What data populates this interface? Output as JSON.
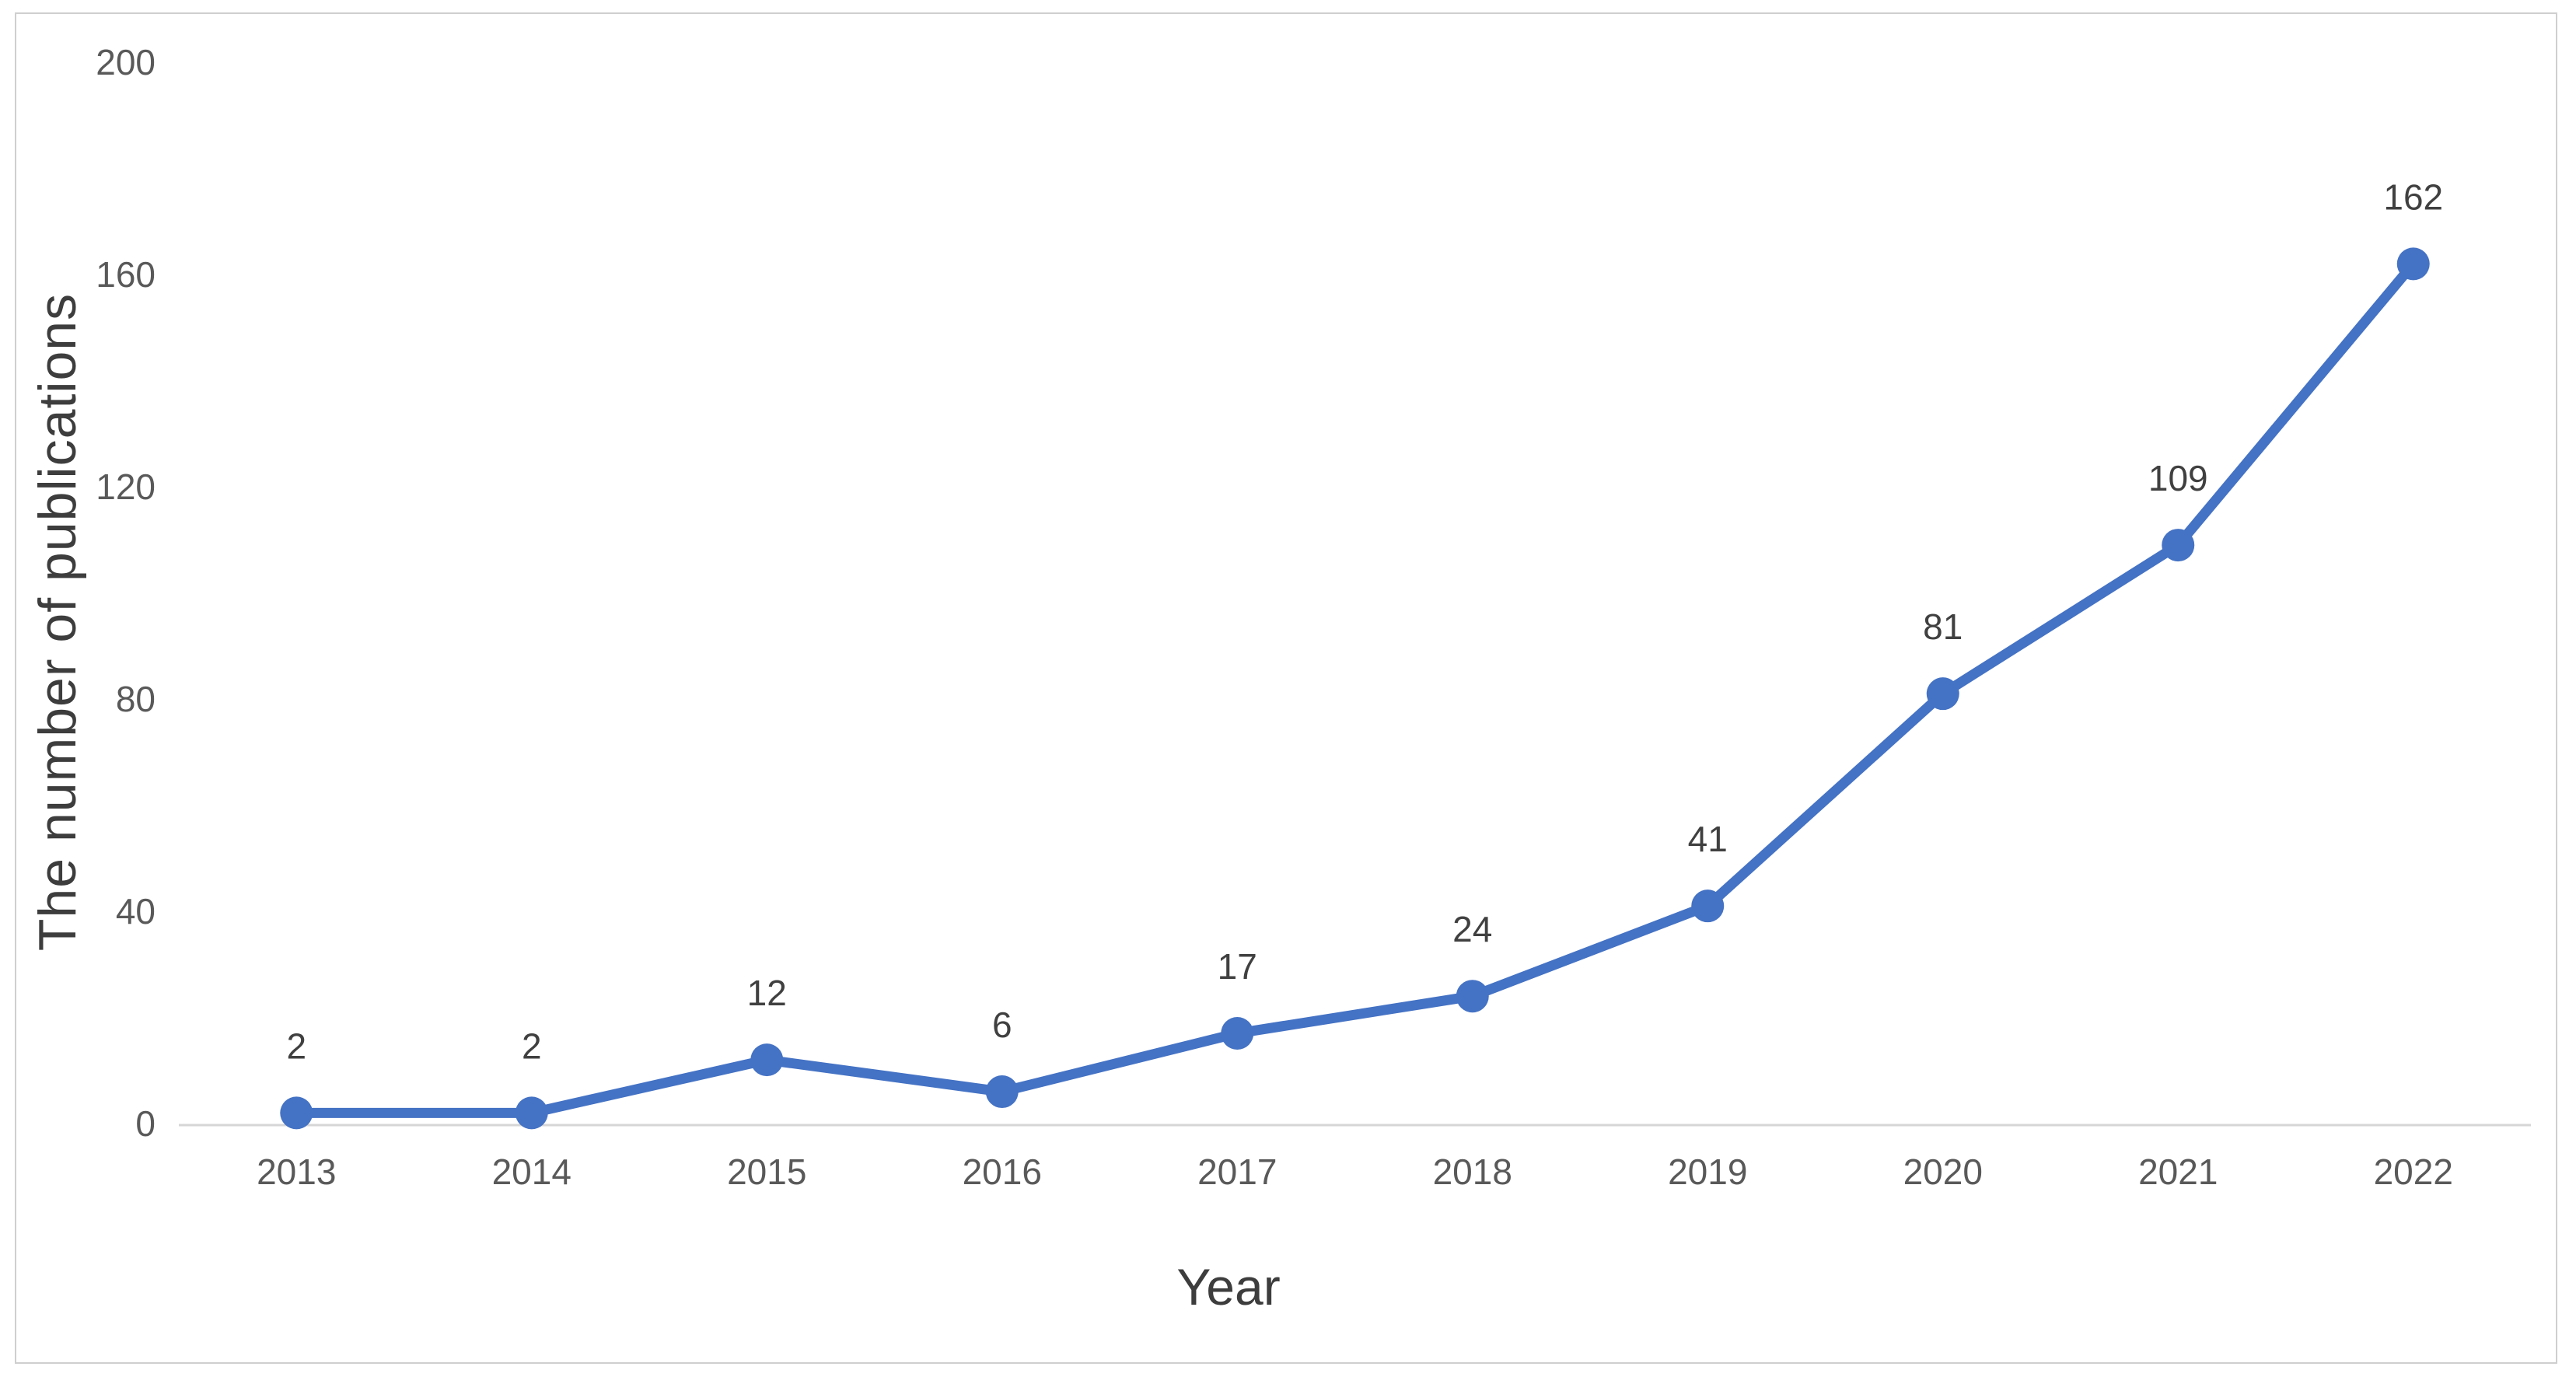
{
  "chart_data": {
    "type": "line",
    "title": "",
    "xlabel": "Year",
    "ylabel": "The number of publications",
    "categories": [
      "2013",
      "2014",
      "2015",
      "2016",
      "2017",
      "2018",
      "2019",
      "2020",
      "2021",
      "2022"
    ],
    "values": [
      2,
      2,
      12,
      6,
      17,
      24,
      41,
      81,
      109,
      162
    ],
    "yticks": [
      0,
      40,
      80,
      120,
      160,
      200
    ],
    "ylim": [
      0,
      200
    ],
    "grid": false,
    "legend": "none",
    "data_labels_shown": true,
    "colors": {
      "line": "#4472c4",
      "marker": "#4472c4",
      "axis_line": "#d6d6d6",
      "tick_label": "#595959",
      "data_label": "#404040",
      "axis_title": "#3d3d3d",
      "figure_border": "#cfcfcf",
      "background": "#ffffff"
    }
  }
}
